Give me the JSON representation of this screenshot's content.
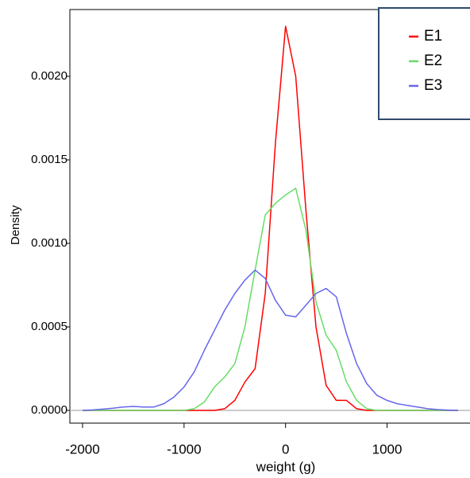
{
  "chart_data": {
    "type": "line",
    "x_label": "weight (g)",
    "y_label": "Density",
    "x": [
      -2000,
      -1900,
      -1800,
      -1700,
      -1600,
      -1500,
      -1400,
      -1300,
      -1200,
      -1100,
      -1000,
      -900,
      -800,
      -700,
      -600,
      -500,
      -400,
      -300,
      -200,
      -100,
      0,
      100,
      200,
      300,
      400,
      500,
      600,
      700,
      800,
      900,
      1000,
      1100,
      1200,
      1300,
      1400,
      1500,
      1600,
      1700
    ],
    "series": [
      {
        "name": "E1",
        "color": "#ff0000",
        "values": [
          0,
          0,
          0,
          0,
          0,
          0,
          0,
          0,
          0,
          0,
          0,
          0,
          0,
          0,
          1e-05,
          6e-05,
          0.00017,
          0.00025,
          0.0007,
          0.0016,
          0.0023,
          0.002,
          0.0012,
          0.0005,
          0.00015,
          6e-05,
          6e-05,
          1e-05,
          0,
          0,
          0,
          0,
          0,
          0,
          0,
          0,
          0,
          0
        ]
      },
      {
        "name": "E2",
        "color": "#66dd66",
        "values": [
          0,
          0,
          0,
          0,
          0,
          0,
          0,
          0,
          0,
          0,
          0,
          1e-05,
          5e-05,
          0.00014,
          0.0002,
          0.00028,
          0.0005,
          0.00084,
          0.00117,
          0.00124,
          0.00129,
          0.00133,
          0.00108,
          0.00065,
          0.00045,
          0.00036,
          0.00017,
          6e-05,
          1e-05,
          0,
          0,
          0,
          0,
          0,
          0,
          0,
          0,
          0
        ]
      },
      {
        "name": "E3",
        "color": "#6666ee",
        "values": [
          0,
          3e-06,
          8e-06,
          1.3e-05,
          2e-05,
          2.4e-05,
          2e-05,
          2e-05,
          4e-05,
          8e-05,
          0.00014,
          0.00023,
          0.00036,
          0.00048,
          0.0006,
          0.0007,
          0.00078,
          0.00084,
          0.00079,
          0.00066,
          0.00057,
          0.00056,
          0.00063,
          0.0007,
          0.00073,
          0.00068,
          0.00046,
          0.00028,
          0.00016,
          9e-05,
          6e-05,
          4e-05,
          3e-05,
          2e-05,
          1e-05,
          5e-06,
          2e-06,
          0
        ]
      }
    ],
    "xlim": [
      -2125,
      1817
    ],
    "ylim": [
      -7.6e-05,
      0.0024
    ],
    "xticks": [
      -2000,
      -1000,
      0,
      1000
    ],
    "yticks": [
      {
        "value": 0,
        "label": "0.0000"
      },
      {
        "value": 0.0005,
        "label": "0.0005"
      },
      {
        "value": 0.001,
        "label": "0.0010"
      },
      {
        "value": 0.0015,
        "label": "0.0015"
      },
      {
        "value": 0.002,
        "label": "0.0020"
      }
    ],
    "legend_position": "upper right"
  }
}
